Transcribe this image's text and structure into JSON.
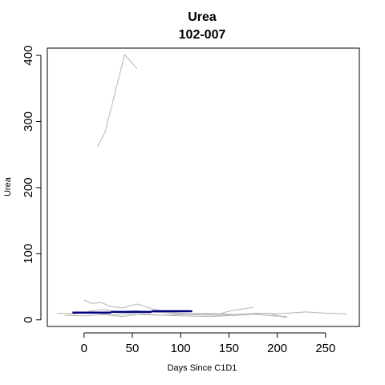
{
  "chart_data": {
    "type": "line",
    "title": "Urea",
    "subtitle": "102-007",
    "xlabel": "Days Since C1D1",
    "ylabel": "Urea",
    "xlim": [
      -38,
      285
    ],
    "ylim": [
      -10,
      411
    ],
    "x_ticks": [
      0,
      50,
      100,
      150,
      200,
      250
    ],
    "y_ticks": [
      0,
      100,
      200,
      300,
      400
    ],
    "grid": false,
    "legend": "none",
    "colors": {
      "background_series": "#b4b4b4",
      "highlight_series": "#000080",
      "axis": "#000000"
    },
    "background_series": [
      {
        "points": [
          [
            14,
            262
          ],
          [
            22,
            285
          ],
          [
            42,
            401
          ],
          [
            55,
            380
          ]
        ]
      },
      {
        "points": [
          [
            0,
            30
          ],
          [
            8,
            25
          ],
          [
            18,
            26
          ],
          [
            28,
            20
          ],
          [
            40,
            18
          ],
          [
            55,
            24
          ],
          [
            70,
            17
          ],
          [
            85,
            12
          ],
          [
            100,
            10
          ],
          [
            120,
            8
          ],
          [
            140,
            9
          ],
          [
            150,
            13
          ],
          [
            162,
            16
          ],
          [
            175,
            19
          ]
        ]
      },
      {
        "points": [
          [
            -28,
            10
          ],
          [
            -10,
            9
          ],
          [
            0,
            11
          ],
          [
            15,
            10
          ],
          [
            30,
            7
          ],
          [
            45,
            9
          ],
          [
            60,
            8
          ],
          [
            80,
            7
          ],
          [
            100,
            8
          ],
          [
            120,
            10
          ],
          [
            140,
            9
          ],
          [
            160,
            8
          ],
          [
            180,
            10
          ],
          [
            200,
            9
          ],
          [
            230,
            12
          ],
          [
            250,
            10
          ],
          [
            272,
            9
          ]
        ]
      },
      {
        "points": [
          [
            5,
            13
          ],
          [
            20,
            16
          ],
          [
            35,
            12
          ],
          [
            52,
            14
          ],
          [
            68,
            12
          ],
          [
            90,
            10
          ],
          [
            110,
            8
          ],
          [
            140,
            7
          ],
          [
            170,
            9
          ],
          [
            195,
            6
          ],
          [
            210,
            5
          ]
        ]
      },
      {
        "points": [
          [
            -20,
            7
          ],
          [
            0,
            6
          ],
          [
            20,
            8
          ],
          [
            40,
            5
          ],
          [
            60,
            9
          ],
          [
            80,
            7
          ],
          [
            100,
            6
          ],
          [
            130,
            5
          ],
          [
            160,
            7
          ],
          [
            190,
            10
          ],
          [
            210,
            3
          ]
        ]
      }
    ],
    "highlight_series": {
      "segments": [
        [
          [
            -12,
            11
          ],
          [
            28,
            11
          ]
        ],
        [
          [
            28,
            12
          ],
          [
            70,
            12
          ]
        ],
        [
          [
            70,
            13
          ],
          [
            112,
            13
          ]
        ]
      ]
    }
  }
}
